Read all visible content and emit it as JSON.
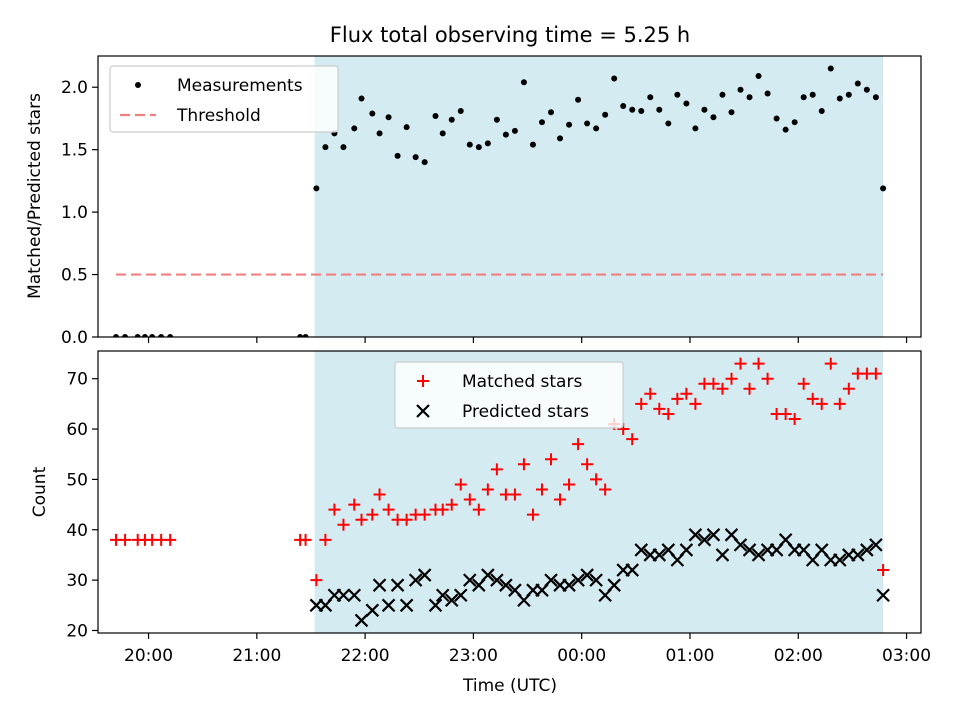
{
  "chart_data": [
    {
      "type": "scatter",
      "title": "Flux total observing time = 5.25 h",
      "xlabel": "",
      "ylabel": "Matched/Predicted stars",
      "xlim": [
        "19:32",
        "03:08"
      ],
      "ylim": [
        0,
        2.25
      ],
      "yticks": [
        "0.0",
        "0.5",
        "1.0",
        "1.5",
        "2.0"
      ],
      "observing_window": [
        "21:32",
        "02:47"
      ],
      "legend_position": "top-left",
      "colors": {
        "measurements": "#000000",
        "threshold": "#f08080",
        "window": "#add8e6"
      },
      "series": [
        {
          "name": "Measurements",
          "marker": "dot",
          "points": [
            [
              "19:42",
              0
            ],
            [
              "19:47",
              0
            ],
            [
              "19:54",
              0
            ],
            [
              "19:58",
              0
            ],
            [
              "20:02",
              0
            ],
            [
              "20:07",
              0
            ],
            [
              "20:12",
              0
            ],
            [
              "21:24",
              0
            ],
            [
              "21:27",
              0
            ],
            [
              "21:33",
              1.19
            ],
            [
              "21:38",
              1.52
            ],
            [
              "21:43",
              1.63
            ],
            [
              "21:48",
              1.52
            ],
            [
              "21:54",
              1.67
            ],
            [
              "21:58",
              1.91
            ],
            [
              "22:04",
              1.79
            ],
            [
              "22:08",
              1.63
            ],
            [
              "22:13",
              1.76
            ],
            [
              "22:18",
              1.45
            ],
            [
              "22:23",
              1.68
            ],
            [
              "22:28",
              1.44
            ],
            [
              "22:33",
              1.4
            ],
            [
              "22:39",
              1.77
            ],
            [
              "22:43",
              1.63
            ],
            [
              "22:48",
              1.74
            ],
            [
              "22:53",
              1.81
            ],
            [
              "22:58",
              1.54
            ],
            [
              "23:03",
              1.52
            ],
            [
              "23:08",
              1.55
            ],
            [
              "23:13",
              1.74
            ],
            [
              "23:18",
              1.62
            ],
            [
              "23:23",
              1.65
            ],
            [
              "23:28",
              2.04
            ],
            [
              "23:33",
              1.54
            ],
            [
              "23:38",
              1.72
            ],
            [
              "23:43",
              1.8
            ],
            [
              "23:48",
              1.59
            ],
            [
              "23:53",
              1.7
            ],
            [
              "23:58",
              1.9
            ],
            [
              "00:03",
              1.71
            ],
            [
              "00:08",
              1.67
            ],
            [
              "00:13",
              1.78
            ],
            [
              "00:18",
              2.07
            ],
            [
              "00:23",
              1.85
            ],
            [
              "00:28",
              1.82
            ],
            [
              "00:33",
              1.81
            ],
            [
              "00:38",
              1.92
            ],
            [
              "00:43",
              1.82
            ],
            [
              "00:48",
              1.71
            ],
            [
              "00:53",
              1.94
            ],
            [
              "00:58",
              1.87
            ],
            [
              "01:03",
              1.67
            ],
            [
              "01:08",
              1.82
            ],
            [
              "01:13",
              1.76
            ],
            [
              "01:18",
              1.94
            ],
            [
              "01:23",
              1.8
            ],
            [
              "01:28",
              1.98
            ],
            [
              "01:33",
              1.92
            ],
            [
              "01:38",
              2.09
            ],
            [
              "01:43",
              1.95
            ],
            [
              "01:48",
              1.75
            ],
            [
              "01:53",
              1.66
            ],
            [
              "01:58",
              1.72
            ],
            [
              "02:03",
              1.92
            ],
            [
              "02:08",
              1.94
            ],
            [
              "02:13",
              1.81
            ],
            [
              "02:18",
              2.15
            ],
            [
              "02:23",
              1.91
            ],
            [
              "02:28",
              1.94
            ],
            [
              "02:33",
              2.03
            ],
            [
              "02:38",
              1.98
            ],
            [
              "02:43",
              1.92
            ],
            [
              "02:47",
              1.19
            ]
          ]
        },
        {
          "name": "Threshold",
          "marker": "dashed-line",
          "points": [
            [
              "19:42",
              0.5
            ],
            [
              "02:47",
              0.5
            ]
          ]
        }
      ]
    },
    {
      "type": "scatter",
      "title": "",
      "xlabel": "Time (UTC)",
      "ylabel": "Count",
      "xlim": [
        "19:32",
        "03:08"
      ],
      "ylim": [
        19.5,
        75.5
      ],
      "yticks": [
        "20",
        "30",
        "40",
        "50",
        "60",
        "70"
      ],
      "xticks": [
        "20:00",
        "21:00",
        "22:00",
        "23:00",
        "00:00",
        "01:00",
        "02:00",
        "03:00"
      ],
      "observing_window": [
        "21:32",
        "02:47"
      ],
      "legend_position": "top-center",
      "colors": {
        "matched": "#ff0000",
        "predicted": "#000000",
        "window": "#add8e6"
      },
      "series": [
        {
          "name": "Matched stars",
          "marker": "plus",
          "points": [
            [
              "19:42",
              38
            ],
            [
              "19:47",
              38
            ],
            [
              "19:54",
              38
            ],
            [
              "19:58",
              38
            ],
            [
              "20:02",
              38
            ],
            [
              "20:07",
              38
            ],
            [
              "20:12",
              38
            ],
            [
              "21:24",
              38
            ],
            [
              "21:27",
              38
            ],
            [
              "21:33",
              30
            ],
            [
              "21:38",
              38
            ],
            [
              "21:43",
              44
            ],
            [
              "21:48",
              41
            ],
            [
              "21:54",
              45
            ],
            [
              "21:58",
              42
            ],
            [
              "22:04",
              43
            ],
            [
              "22:08",
              47
            ],
            [
              "22:13",
              44
            ],
            [
              "22:18",
              42
            ],
            [
              "22:23",
              42
            ],
            [
              "22:28",
              43
            ],
            [
              "22:33",
              43
            ],
            [
              "22:39",
              44
            ],
            [
              "22:43",
              44
            ],
            [
              "22:48",
              45
            ],
            [
              "22:53",
              49
            ],
            [
              "22:58",
              46
            ],
            [
              "23:03",
              44
            ],
            [
              "23:08",
              48
            ],
            [
              "23:13",
              52
            ],
            [
              "23:18",
              47
            ],
            [
              "23:23",
              47
            ],
            [
              "23:28",
              53
            ],
            [
              "23:33",
              43
            ],
            [
              "23:38",
              48
            ],
            [
              "23:43",
              54
            ],
            [
              "23:48",
              46
            ],
            [
              "23:53",
              49
            ],
            [
              "23:58",
              57
            ],
            [
              "00:03",
              53
            ],
            [
              "00:08",
              50
            ],
            [
              "00:13",
              48
            ],
            [
              "00:18",
              61
            ],
            [
              "00:23",
              60
            ],
            [
              "00:28",
              58
            ],
            [
              "00:33",
              65
            ],
            [
              "00:38",
              67
            ],
            [
              "00:43",
              64
            ],
            [
              "00:48",
              63
            ],
            [
              "00:53",
              66
            ],
            [
              "00:58",
              67
            ],
            [
              "01:03",
              65
            ],
            [
              "01:08",
              69
            ],
            [
              "01:13",
              69
            ],
            [
              "01:18",
              68
            ],
            [
              "01:23",
              70
            ],
            [
              "01:28",
              73
            ],
            [
              "01:33",
              68
            ],
            [
              "01:38",
              73
            ],
            [
              "01:43",
              70
            ],
            [
              "01:48",
              63
            ],
            [
              "01:53",
              63
            ],
            [
              "01:58",
              62
            ],
            [
              "02:03",
              69
            ],
            [
              "02:08",
              66
            ],
            [
              "02:13",
              65
            ],
            [
              "02:18",
              73
            ],
            [
              "02:23",
              65
            ],
            [
              "02:28",
              68
            ],
            [
              "02:33",
              71
            ],
            [
              "02:38",
              71
            ],
            [
              "02:43",
              71
            ],
            [
              "02:47",
              32
            ]
          ]
        },
        {
          "name": "Predicted stars",
          "marker": "x",
          "points": [
            [
              "21:33",
              25
            ],
            [
              "21:38",
              25
            ],
            [
              "21:43",
              27
            ],
            [
              "21:48",
              27
            ],
            [
              "21:54",
              27
            ],
            [
              "21:58",
              22
            ],
            [
              "22:04",
              24
            ],
            [
              "22:08",
              29
            ],
            [
              "22:13",
              25
            ],
            [
              "22:18",
              29
            ],
            [
              "22:23",
              25
            ],
            [
              "22:28",
              30
            ],
            [
              "22:33",
              31
            ],
            [
              "22:39",
              25
            ],
            [
              "22:43",
              27
            ],
            [
              "22:48",
              26
            ],
            [
              "22:53",
              27
            ],
            [
              "22:58",
              30
            ],
            [
              "23:03",
              29
            ],
            [
              "23:08",
              31
            ],
            [
              "23:13",
              30
            ],
            [
              "23:18",
              29
            ],
            [
              "23:23",
              28
            ],
            [
              "23:28",
              26
            ],
            [
              "23:33",
              28
            ],
            [
              "23:38",
              28
            ],
            [
              "23:43",
              30
            ],
            [
              "23:48",
              29
            ],
            [
              "23:53",
              29
            ],
            [
              "23:58",
              30
            ],
            [
              "00:03",
              31
            ],
            [
              "00:08",
              30
            ],
            [
              "00:13",
              27
            ],
            [
              "00:18",
              29
            ],
            [
              "00:23",
              32
            ],
            [
              "00:28",
              32
            ],
            [
              "00:33",
              36
            ],
            [
              "00:38",
              35
            ],
            [
              "00:43",
              35
            ],
            [
              "00:48",
              36
            ],
            [
              "00:53",
              34
            ],
            [
              "00:58",
              36
            ],
            [
              "01:03",
              39
            ],
            [
              "01:08",
              38
            ],
            [
              "01:13",
              39
            ],
            [
              "01:18",
              35
            ],
            [
              "01:23",
              39
            ],
            [
              "01:28",
              37
            ],
            [
              "01:33",
              36
            ],
            [
              "01:38",
              35
            ],
            [
              "01:43",
              36
            ],
            [
              "01:48",
              36
            ],
            [
              "01:53",
              38
            ],
            [
              "01:58",
              36
            ],
            [
              "02:03",
              36
            ],
            [
              "02:08",
              34
            ],
            [
              "02:13",
              36
            ],
            [
              "02:18",
              34
            ],
            [
              "02:23",
              34
            ],
            [
              "02:28",
              35
            ],
            [
              "02:33",
              35
            ],
            [
              "02:38",
              36
            ],
            [
              "02:43",
              37
            ],
            [
              "02:47",
              27
            ]
          ]
        }
      ]
    }
  ]
}
